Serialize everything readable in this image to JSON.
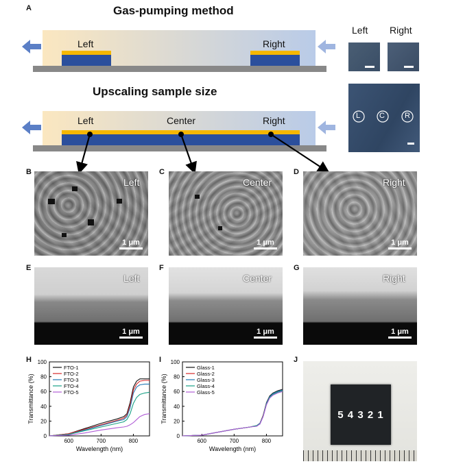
{
  "panels": {
    "a": "A",
    "b": "B",
    "c": "C",
    "d": "D",
    "e": "E",
    "f": "F",
    "g": "G",
    "h": "H",
    "i": "I",
    "j": "J"
  },
  "schematic": {
    "title_top": "Gas-pumping method",
    "title_bottom": "Upscaling sample size",
    "left": "Left",
    "right": "Right",
    "center": "Center",
    "photo_left": "Left",
    "photo_right": "Right",
    "circle_l": "L",
    "circle_c": "C",
    "circle_r": "R"
  },
  "sem": {
    "b_label": "Left",
    "c_label": "Center",
    "d_label": "Right",
    "e_label": "Left",
    "f_label": "Center",
    "g_label": "Right",
    "scale": "1 μm"
  },
  "photo_j": {
    "digits": "5 4 3 2 1"
  },
  "colors": {
    "fto1": "#111111",
    "fto2": "#d62728",
    "fto3": "#1f77b4",
    "fto4": "#17a085",
    "fto5": "#b05cd6",
    "substrate": "#888888",
    "gold": "#f5b700",
    "blue": "#2b4f9c"
  },
  "chart_data": [
    {
      "type": "line",
      "xlabel": "Wavelength (nm)",
      "ylabel": "Transmittance (%)",
      "xlim": [
        540,
        850
      ],
      "ylim": [
        0,
        100
      ],
      "xticks": [
        600,
        700,
        800
      ],
      "yticks": [
        0,
        20,
        40,
        60,
        80,
        100
      ],
      "legend": "top-left",
      "series": [
        {
          "name": "FTO-1",
          "color": "#111111",
          "x": [
            540,
            600,
            650,
            700,
            750,
            770,
            780,
            790,
            800,
            810,
            820,
            835,
            850
          ],
          "values": [
            0,
            3,
            10,
            17,
            23,
            26,
            30,
            45,
            66,
            74,
            77,
            77,
            77
          ]
        },
        {
          "name": "FTO-2",
          "color": "#d62728",
          "x": [
            540,
            600,
            650,
            700,
            750,
            770,
            780,
            790,
            800,
            810,
            820,
            835,
            850
          ],
          "values": [
            0,
            3,
            9,
            15,
            21,
            24,
            28,
            42,
            62,
            70,
            74,
            75,
            75
          ]
        },
        {
          "name": "FTO-3",
          "color": "#1f77b4",
          "x": [
            540,
            600,
            650,
            700,
            750,
            770,
            780,
            790,
            800,
            810,
            820,
            835,
            850
          ],
          "values": [
            0,
            2,
            8,
            14,
            20,
            22,
            26,
            38,
            58,
            66,
            69,
            70,
            70
          ]
        },
        {
          "name": "FTO-4",
          "color": "#17a085",
          "x": [
            540,
            600,
            650,
            700,
            750,
            770,
            780,
            790,
            800,
            810,
            820,
            835,
            850
          ],
          "values": [
            0,
            2,
            7,
            12,
            17,
            19,
            22,
            30,
            44,
            52,
            56,
            58,
            59
          ]
        },
        {
          "name": "FTO-5",
          "color": "#b05cd6",
          "x": [
            540,
            600,
            650,
            700,
            750,
            770,
            780,
            790,
            800,
            810,
            820,
            835,
            850
          ],
          "values": [
            0,
            1,
            4,
            8,
            11,
            12,
            13,
            15,
            18,
            22,
            26,
            29,
            30
          ]
        }
      ]
    },
    {
      "type": "line",
      "xlabel": "Wavelength (nm)",
      "ylabel": "Transmittance (%)",
      "xlim": [
        540,
        850
      ],
      "ylim": [
        0,
        100
      ],
      "xticks": [
        600,
        700,
        800
      ],
      "yticks": [
        0,
        20,
        40,
        60,
        80,
        100
      ],
      "legend": "top-left",
      "series": [
        {
          "name": "Glass-1",
          "color": "#111111",
          "x": [
            540,
            600,
            650,
            700,
            750,
            770,
            780,
            790,
            800,
            810,
            820,
            835,
            850
          ],
          "values": [
            0,
            1,
            5,
            9,
            12,
            14,
            17,
            28,
            45,
            54,
            58,
            61,
            63
          ]
        },
        {
          "name": "Glass-2",
          "color": "#d62728",
          "x": [
            540,
            600,
            650,
            700,
            750,
            770,
            780,
            790,
            800,
            810,
            820,
            835,
            850
          ],
          "values": [
            0,
            1,
            5,
            9,
            12,
            14,
            17,
            28,
            44,
            53,
            57,
            60,
            62
          ]
        },
        {
          "name": "Glass-3",
          "color": "#1f77b4",
          "x": [
            540,
            600,
            650,
            700,
            750,
            770,
            780,
            790,
            800,
            810,
            820,
            835,
            850
          ],
          "values": [
            0,
            1,
            5,
            9,
            12,
            14,
            17,
            27,
            44,
            53,
            57,
            60,
            62
          ]
        },
        {
          "name": "Glass-4",
          "color": "#17a085",
          "x": [
            540,
            600,
            650,
            700,
            750,
            770,
            780,
            790,
            800,
            810,
            820,
            835,
            850
          ],
          "values": [
            0,
            1,
            5,
            9,
            12,
            14,
            16,
            27,
            43,
            52,
            56,
            59,
            61
          ]
        },
        {
          "name": "Glass-5",
          "color": "#b05cd6",
          "x": [
            540,
            600,
            650,
            700,
            750,
            770,
            780,
            790,
            800,
            810,
            820,
            835,
            850
          ],
          "values": [
            0,
            1,
            5,
            9,
            12,
            13,
            16,
            26,
            42,
            51,
            55,
            58,
            60
          ]
        }
      ]
    }
  ]
}
